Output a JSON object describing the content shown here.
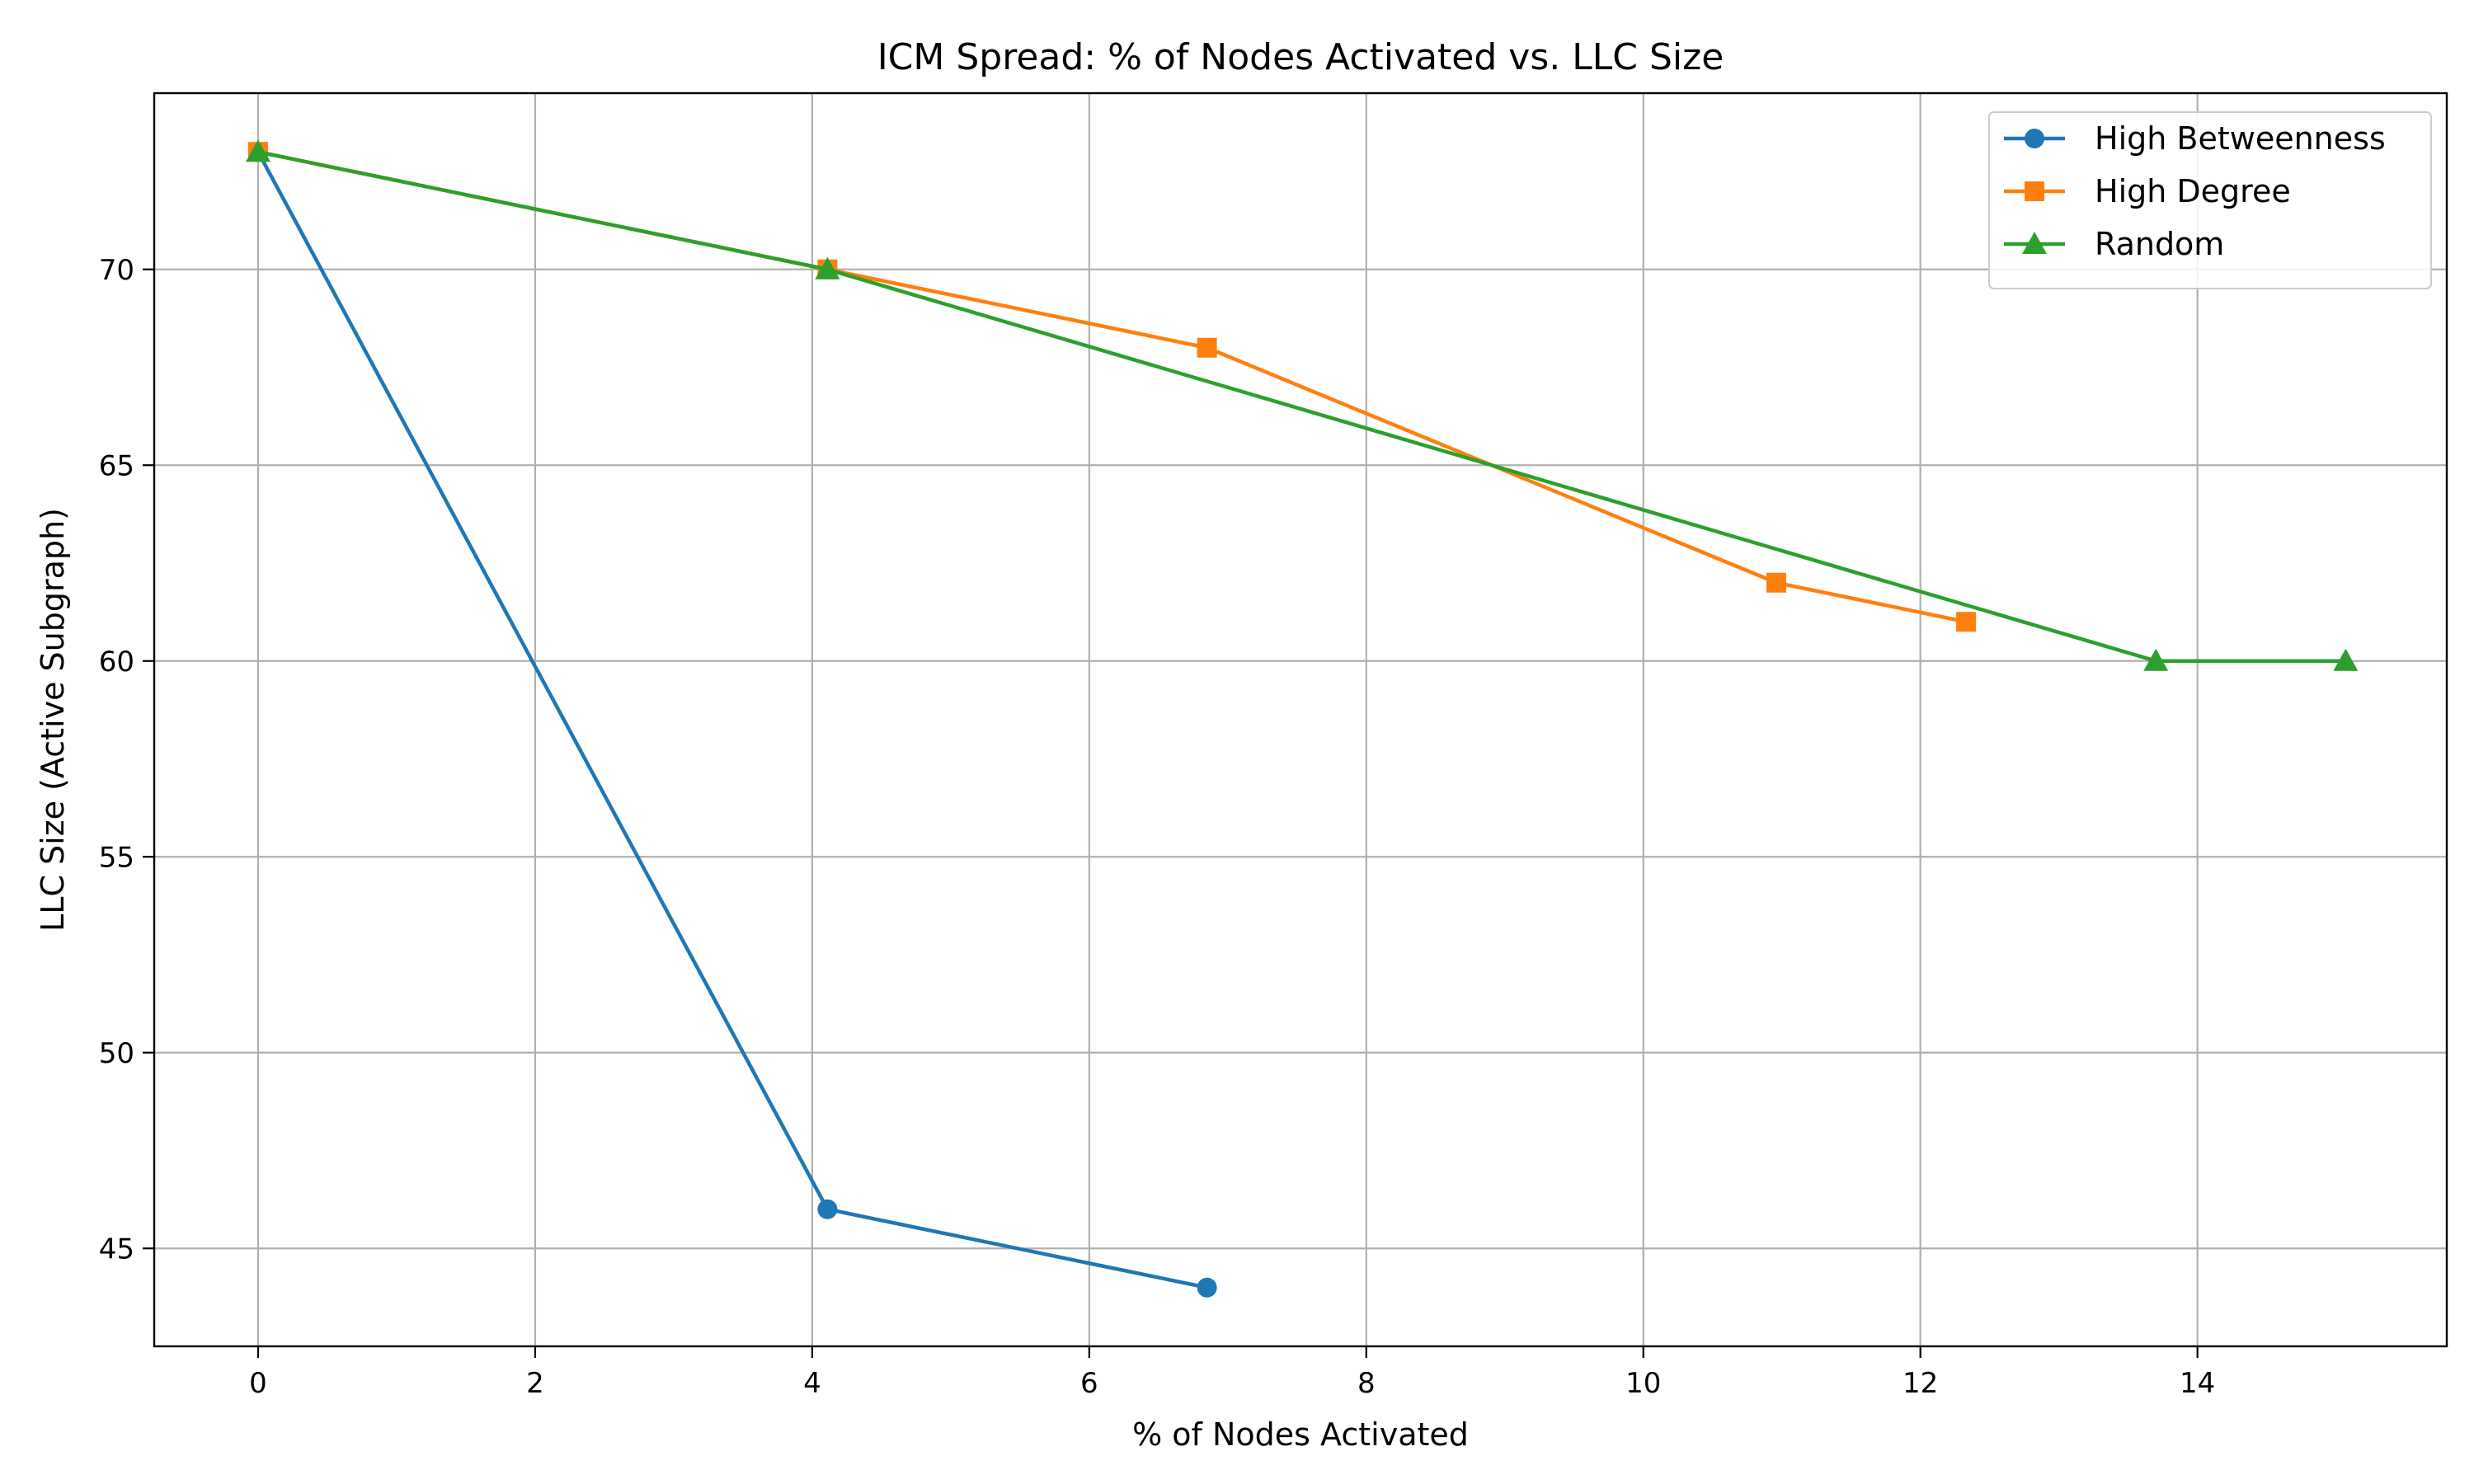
{
  "chart_data": {
    "type": "line",
    "title": "ICM Spread: % of Nodes Activated vs. LLC Size",
    "xlabel": "% of Nodes Activated",
    "ylabel": "LLC Size (Active Subgraph)",
    "xlim": [
      -0.75,
      15.8
    ],
    "ylim": [
      42.5,
      74.5
    ],
    "xticks": [
      0,
      2,
      4,
      6,
      8,
      10,
      12,
      14
    ],
    "yticks": [
      45,
      50,
      55,
      60,
      65,
      70
    ],
    "grid": true,
    "legend_position": "top-right",
    "series": [
      {
        "name": "High Betweenness",
        "color": "#1f77b4",
        "marker": "circle",
        "x": [
          0,
          4.11,
          6.85
        ],
        "y": [
          73,
          46,
          44
        ]
      },
      {
        "name": "High Degree",
        "color": "#ff7f0e",
        "marker": "square",
        "x": [
          0,
          4.11,
          6.85,
          10.96,
          12.33
        ],
        "y": [
          73,
          70,
          68,
          62,
          61
        ]
      },
      {
        "name": "Random",
        "color": "#2ca02c",
        "marker": "triangle",
        "x": [
          0,
          4.11,
          13.7,
          15.07
        ],
        "y": [
          73,
          70,
          60,
          60
        ]
      }
    ]
  }
}
